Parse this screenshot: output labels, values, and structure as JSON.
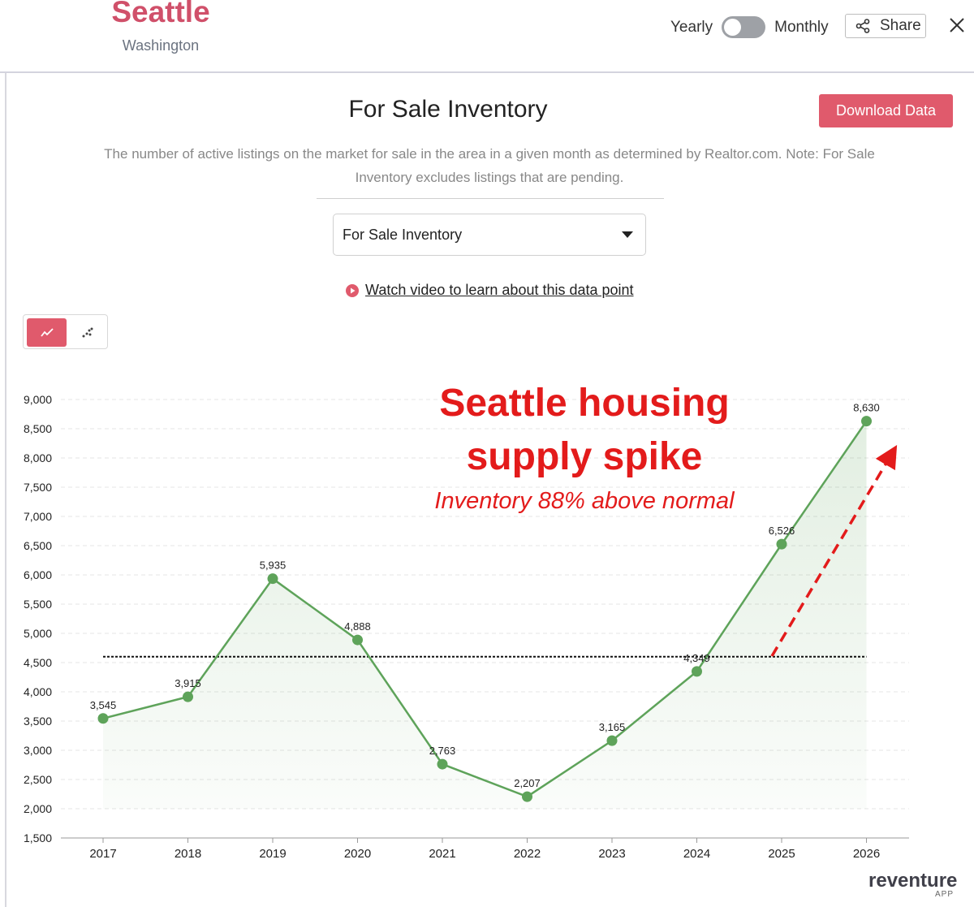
{
  "header": {
    "city": "Seattle",
    "state": "Washington",
    "toggle": {
      "left_label": "Yearly",
      "right_label": "Monthly"
    },
    "share_label": "Share"
  },
  "panel": {
    "title": "For Sale Inventory",
    "download_label": "Download Data",
    "description": "The number of active listings on the market for sale in the area in a given month as determined by Realtor.com. Note: For Sale Inventory excludes listings that are pending.",
    "select_value": "For Sale Inventory",
    "video_link": "Watch video to learn about this data point"
  },
  "annotation": {
    "headline_line1": "Seattle housing",
    "headline_line2": "supply spike",
    "subline": "Inventory 88% above normal"
  },
  "brand": {
    "name": "reventure",
    "sub": "APP"
  },
  "colors": {
    "accent": "#e05a6c",
    "line": "#5ea35a",
    "annotation": "#e31b1b"
  },
  "chart_data": {
    "type": "line",
    "x": [
      "2017",
      "2018",
      "2019",
      "2020",
      "2021",
      "2022",
      "2023",
      "2024",
      "2025",
      "2026"
    ],
    "series": [
      {
        "values": [
          3545,
          3915,
          5935,
          4888,
          2763,
          2207,
          3165,
          4349,
          6526,
          8630
        ],
        "labels": [
          "3,545",
          "3,915",
          "5,935",
          "4,888",
          "2,763",
          "2,207",
          "3,165",
          "4,349",
          "6,526",
          "8,630"
        ]
      }
    ],
    "yticks": [
      "1,500",
      "2,000",
      "2,500",
      "3,000",
      "3,500",
      "4,000",
      "4,500",
      "5,000",
      "5,500",
      "6,000",
      "6,500",
      "7,000",
      "7,500",
      "8,000",
      "8,500",
      "9,000"
    ],
    "ylim": [
      1500,
      9000
    ],
    "reference_line": 4600,
    "grid": true,
    "area_fill": true
  }
}
